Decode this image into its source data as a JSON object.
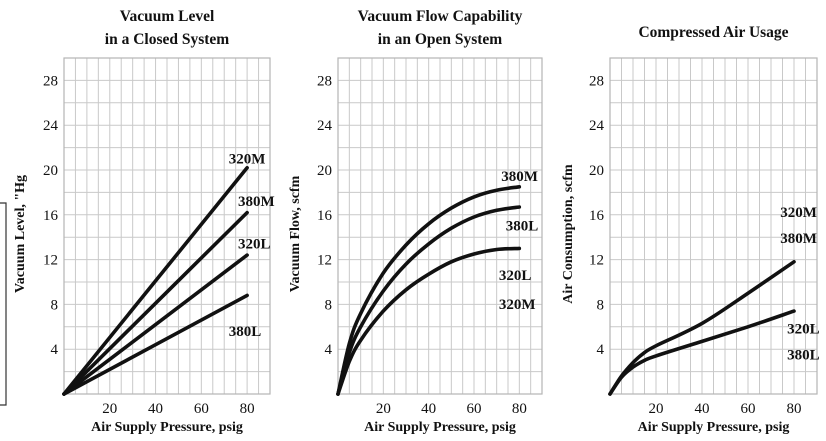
{
  "chart_data": [
    {
      "type": "line",
      "title": [
        "Vacuum Level",
        "in a Closed System"
      ],
      "xlabel": "Air Supply Pressure, psig",
      "ylabel": "Vacuum Level, \"Hg",
      "xlim": [
        0,
        90
      ],
      "ylim": [
        0,
        30
      ],
      "xticks": [
        20,
        40,
        60,
        80
      ],
      "yticks": [
        4,
        8,
        12,
        16,
        20,
        24,
        28
      ],
      "grid": true,
      "series": [
        {
          "name": "320M",
          "points": [
            [
              0,
              0
            ],
            [
              80,
              20.2
            ]
          ]
        },
        {
          "name": "380M",
          "points": [
            [
              0,
              0
            ],
            [
              80,
              16.2
            ]
          ]
        },
        {
          "name": "320L",
          "points": [
            [
              0,
              0
            ],
            [
              80,
              12.4
            ]
          ]
        },
        {
          "name": "380L",
          "points": [
            [
              0,
              0
            ],
            [
              80,
              8.8
            ]
          ]
        }
      ],
      "annotations": [
        {
          "text": "320M",
          "x": 72,
          "y": 20.6
        },
        {
          "text": "380M",
          "x": 76,
          "y": 16.8
        },
        {
          "text": "320L",
          "x": 76,
          "y": 13.0
        },
        {
          "text": "380L",
          "x": 72,
          "y": 5.2
        }
      ]
    },
    {
      "type": "line",
      "title": [
        "Vacuum Flow Capability",
        "in an Open System"
      ],
      "xlabel": "Air Supply Pressure, psig",
      "ylabel": "Vacuum Flow, scfm",
      "xlim": [
        0,
        90
      ],
      "ylim": [
        0,
        30
      ],
      "xticks": [
        20,
        40,
        60,
        80
      ],
      "yticks": [
        4,
        8,
        12,
        16,
        20,
        24,
        28
      ],
      "grid": true,
      "series": [
        {
          "name": "380M",
          "points": [
            [
              0,
              0
            ],
            [
              5,
              4.5
            ],
            [
              10,
              7.2
            ],
            [
              20,
              10.8
            ],
            [
              30,
              13.3
            ],
            [
              40,
              15.2
            ],
            [
              50,
              16.6
            ],
            [
              60,
              17.6
            ],
            [
              70,
              18.2
            ],
            [
              80,
              18.5
            ]
          ]
        },
        {
          "name": "380L",
          "points": [
            [
              0,
              0
            ],
            [
              5,
              3.7
            ],
            [
              10,
              6.0
            ],
            [
              20,
              9.2
            ],
            [
              30,
              11.6
            ],
            [
              40,
              13.4
            ],
            [
              50,
              14.8
            ],
            [
              60,
              15.8
            ],
            [
              70,
              16.4
            ],
            [
              80,
              16.7
            ]
          ]
        },
        {
          "name": "320L / 320M",
          "points": [
            [
              0,
              0
            ],
            [
              5,
              2.9
            ],
            [
              10,
              4.8
            ],
            [
              20,
              7.4
            ],
            [
              30,
              9.3
            ],
            [
              40,
              10.7
            ],
            [
              50,
              11.8
            ],
            [
              60,
              12.5
            ],
            [
              70,
              12.9
            ],
            [
              80,
              13.0
            ]
          ]
        }
      ],
      "annotations": [
        {
          "text": "380M",
          "x": 72,
          "y": 19.0
        },
        {
          "text": "380L",
          "x": 74,
          "y": 14.6
        },
        {
          "text": "320L",
          "x": 71,
          "y": 10.2
        },
        {
          "text": "320M",
          "x": 71,
          "y": 7.6
        }
      ]
    },
    {
      "type": "line",
      "title": [
        "Compressed Air Usage"
      ],
      "xlabel": "Air Supply Pressure, psig",
      "ylabel": "Air Consumption, scfm",
      "xlim": [
        0,
        90
      ],
      "ylim": [
        0,
        30
      ],
      "xticks": [
        20,
        40,
        60,
        80
      ],
      "yticks": [
        4,
        8,
        12,
        16,
        20,
        24,
        28
      ],
      "grid": true,
      "series": [
        {
          "name": "320M / 380M",
          "points": [
            [
              0,
              0
            ],
            [
              5,
              1.6
            ],
            [
              10,
              2.8
            ],
            [
              15,
              3.7
            ],
            [
              20,
              4.3
            ],
            [
              40,
              6.3
            ],
            [
              60,
              9.0
            ],
            [
              80,
              11.8
            ]
          ]
        },
        {
          "name": "320L / 380L",
          "points": [
            [
              0,
              0
            ],
            [
              5,
              1.5
            ],
            [
              10,
              2.4
            ],
            [
              15,
              3.0
            ],
            [
              20,
              3.4
            ],
            [
              40,
              4.7
            ],
            [
              60,
              6.0
            ],
            [
              80,
              7.4
            ]
          ]
        }
      ],
      "annotations": [
        {
          "text": "320M",
          "x": 74,
          "y": 15.8
        },
        {
          "text": "380M",
          "x": 74,
          "y": 13.5
        },
        {
          "text": "320L",
          "x": 77,
          "y": 5.4
        },
        {
          "text": "380L",
          "x": 77,
          "y": 3.1
        }
      ]
    }
  ]
}
